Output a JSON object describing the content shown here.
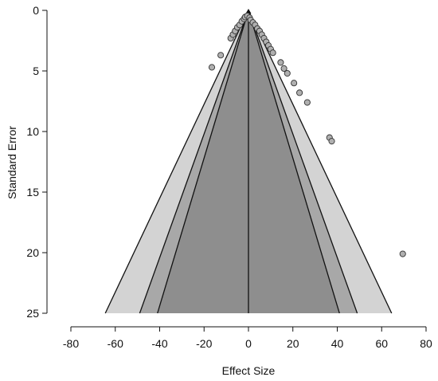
{
  "chart_data": {
    "type": "scatter",
    "subtype": "funnel",
    "title": "",
    "xlabel": "Effect Size",
    "ylabel": "Standard Error",
    "xlim": [
      -80,
      80
    ],
    "ylim": [
      0,
      25
    ],
    "y_reversed": true,
    "x_ticks": [
      -80,
      -60,
      -40,
      -20,
      0,
      20,
      40,
      60,
      80
    ],
    "y_ticks": [
      0,
      5,
      10,
      15,
      20,
      25
    ],
    "grid": false,
    "legend": "none",
    "center": 0,
    "funnel_half_widths_at_se_25": [
      64.5,
      49,
      41
    ],
    "region_colors": [
      "#d3d3d3",
      "#a8a8a8",
      "#8e8e8e"
    ],
    "point_color": "#b0b0b0",
    "points": [
      {
        "x": -16.5,
        "y": 4.7
      },
      {
        "x": -12.5,
        "y": 3.7
      },
      {
        "x": -8,
        "y": 2.3
      },
      {
        "x": -7,
        "y": 2.0
      },
      {
        "x": -6,
        "y": 1.7
      },
      {
        "x": -5,
        "y": 1.4
      },
      {
        "x": -4,
        "y": 1.2
      },
      {
        "x": -3,
        "y": 0.9
      },
      {
        "x": -2,
        "y": 0.7
      },
      {
        "x": -1.5,
        "y": 0.55
      },
      {
        "x": -0.5,
        "y": 0.45
      },
      {
        "x": 0.5,
        "y": 0.6
      },
      {
        "x": 1,
        "y": 0.8
      },
      {
        "x": 2,
        "y": 1.0
      },
      {
        "x": 3,
        "y": 1.2
      },
      {
        "x": 4,
        "y": 1.5
      },
      {
        "x": 5,
        "y": 1.7
      },
      {
        "x": 6,
        "y": 2.0
      },
      {
        "x": 7,
        "y": 2.3
      },
      {
        "x": 8,
        "y": 2.6
      },
      {
        "x": 9,
        "y": 2.9
      },
      {
        "x": 10,
        "y": 3.2
      },
      {
        "x": 11,
        "y": 3.5
      },
      {
        "x": 14.5,
        "y": 4.3
      },
      {
        "x": 16,
        "y": 4.8
      },
      {
        "x": 17.5,
        "y": 5.2
      },
      {
        "x": 20.5,
        "y": 6.0
      },
      {
        "x": 23,
        "y": 6.8
      },
      {
        "x": 26.5,
        "y": 7.6
      },
      {
        "x": 36.5,
        "y": 10.5
      },
      {
        "x": 37.5,
        "y": 10.8
      },
      {
        "x": 69.5,
        "y": 20.1
      }
    ]
  }
}
